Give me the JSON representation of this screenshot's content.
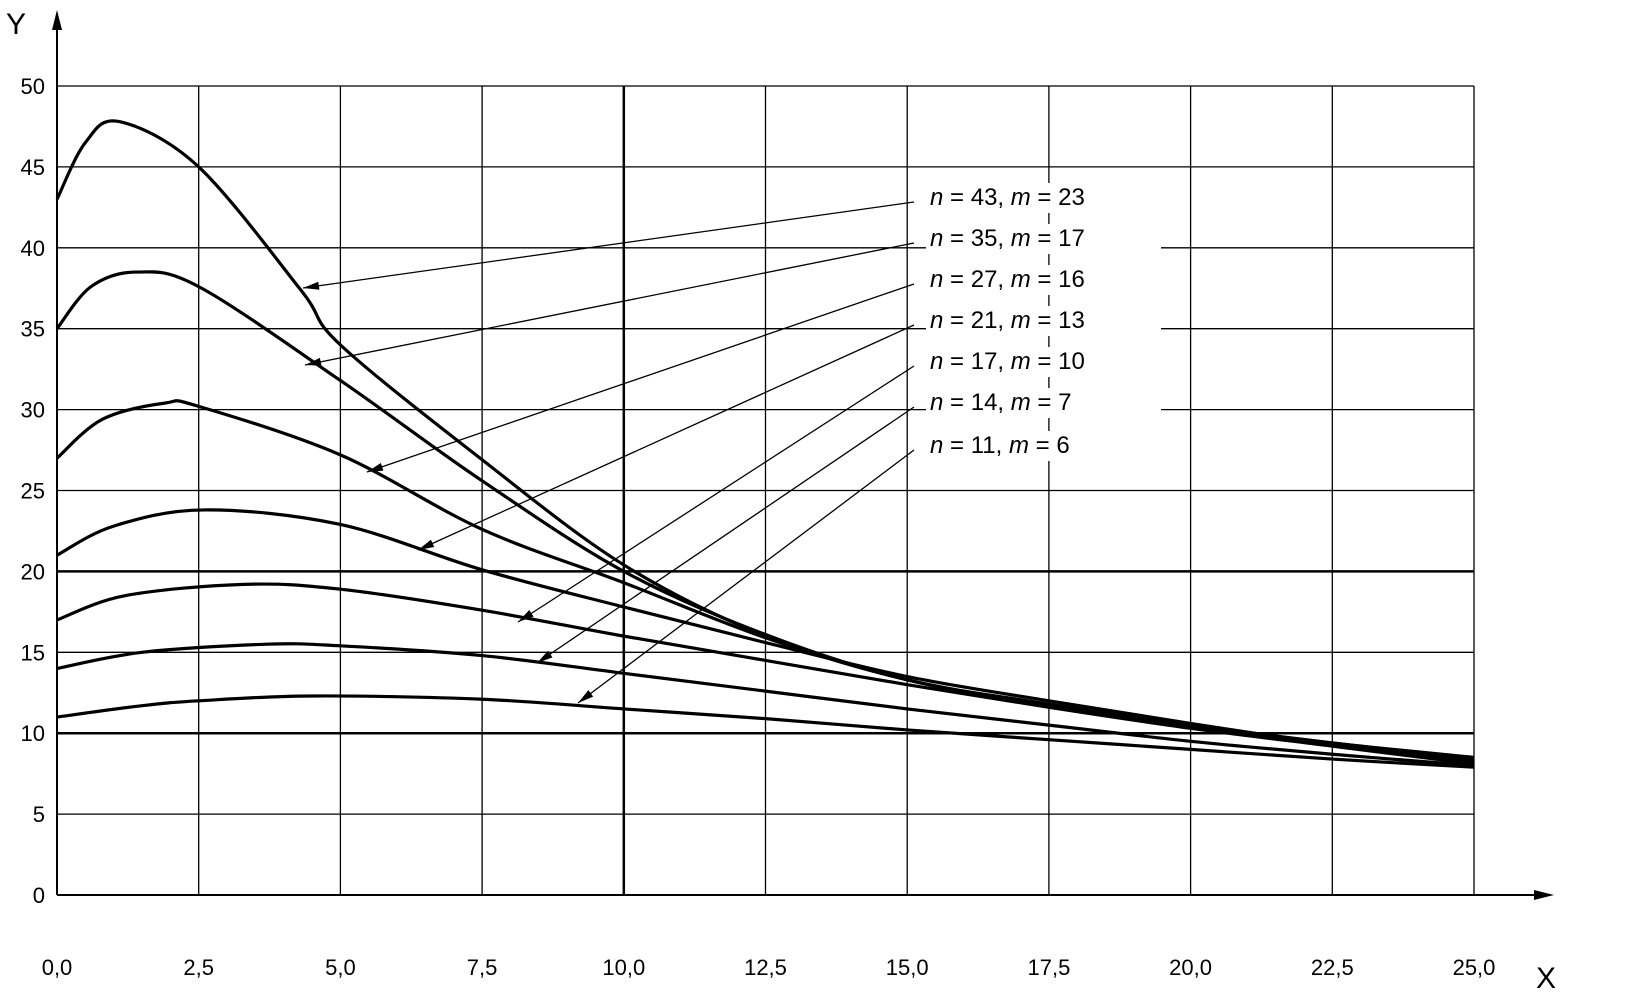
{
  "chart_data": {
    "type": "line",
    "title": "",
    "xlabel": "X",
    "ylabel": "Y",
    "xlim": [
      0,
      25
    ],
    "ylim": [
      0,
      50
    ],
    "grid": true,
    "x_ticks": [
      "0,0",
      "2,5",
      "5,0",
      "7,5",
      "10,0",
      "12,5",
      "15,0",
      "17,5",
      "20,0",
      "22,5",
      "25,0"
    ],
    "y_ticks": [
      "0",
      "5",
      "10",
      "15",
      "20",
      "25",
      "30",
      "35",
      "40",
      "45",
      "50"
    ],
    "series": [
      {
        "name": "n = 43, m = 23",
        "n": "43",
        "m": "23",
        "x": [
          0,
          0.5,
          1.1,
          2.5,
          4.3,
          5,
          7.5,
          10,
          12.5,
          15,
          17.5,
          20,
          22.5,
          25
        ],
        "y": [
          43,
          46.5,
          47.8,
          45,
          37.4,
          34,
          26.9,
          20.4,
          16,
          13.3,
          11.8,
          10.5,
          9.4,
          8.5
        ]
      },
      {
        "name": "n = 35, m = 17",
        "n": "35",
        "m": "17",
        "x": [
          0,
          0.6,
          1.4,
          2.5,
          5,
          7.5,
          10,
          12.5,
          15,
          17.5,
          20,
          22.5,
          25
        ],
        "y": [
          35,
          37.6,
          38.5,
          37.6,
          31.8,
          25.6,
          20,
          16.1,
          13.3,
          11.8,
          10.5,
          9.4,
          8.4
        ]
      },
      {
        "name": "n = 27, m = 16",
        "n": "27",
        "m": "16",
        "x": [
          0,
          0.8,
          1.9,
          2.5,
          5,
          7.5,
          10,
          12.5,
          15,
          17.5,
          20,
          22.5,
          25
        ],
        "y": [
          27,
          29.4,
          30.4,
          30.2,
          27.2,
          22.6,
          19.3,
          15.9,
          13.3,
          11.7,
          10.4,
          9.3,
          8.3
        ]
      },
      {
        "name": "n = 21, m = 13",
        "n": "21",
        "m": "13",
        "x": [
          0,
          1,
          2.6,
          5,
          7.5,
          10,
          12.5,
          15,
          17.5,
          20,
          22.5,
          25
        ],
        "y": [
          21,
          22.8,
          23.8,
          22.9,
          20.1,
          17.8,
          15.6,
          13.5,
          12,
          10.6,
          9.3,
          8.2
        ]
      },
      {
        "name": "n = 17, m = 10",
        "n": "17",
        "m": "10",
        "x": [
          0,
          1.2,
          3.3,
          5,
          7.5,
          10,
          12.5,
          15,
          17.5,
          20,
          22.5,
          25
        ],
        "y": [
          17,
          18.5,
          19.2,
          18.9,
          17.6,
          16,
          14.5,
          13,
          11.6,
          10.3,
          9.2,
          8.1
        ]
      },
      {
        "name": "n = 14, m = 7",
        "n": "14",
        "m": "7",
        "x": [
          0,
          1.5,
          3.7,
          5,
          7.5,
          10,
          12.5,
          15,
          17.5,
          20,
          22.5,
          25
        ],
        "y": [
          14,
          15,
          15.5,
          15.4,
          14.8,
          13.7,
          12.6,
          11.5,
          10.5,
          9.5,
          8.7,
          8
        ]
      },
      {
        "name": "n = 11, m = 6",
        "n": "11",
        "m": "6",
        "x": [
          0,
          1.5,
          2.5,
          4.5,
          7.5,
          10,
          12.5,
          15,
          17.5,
          20,
          22.5,
          25
        ],
        "y": [
          11,
          11.7,
          12,
          12.3,
          12.1,
          11.5,
          10.9,
          10.2,
          9.6,
          9,
          8.4,
          7.9
        ]
      }
    ]
  }
}
